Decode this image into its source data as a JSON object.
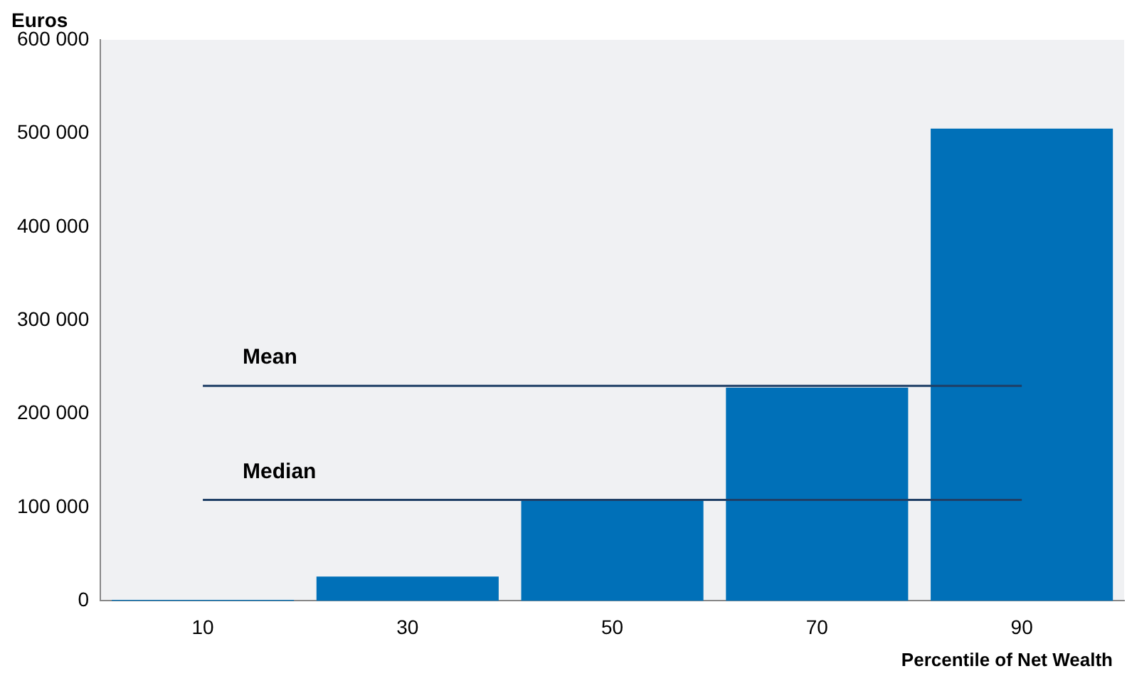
{
  "chart_data": {
    "type": "bar",
    "xlabel": "Percentile of Net Wealth",
    "ylabel": "Euros",
    "categories": [
      "10",
      "30",
      "50",
      "70",
      "90"
    ],
    "values": [
      1000,
      26000,
      108000,
      228000,
      505000
    ],
    "color": "#0070b8",
    "ylim": [
      0,
      600000
    ],
    "yticks": [
      {
        "value": 0,
        "label": "0"
      },
      {
        "value": 100000,
        "label": "100 000"
      },
      {
        "value": 200000,
        "label": "200 000"
      },
      {
        "value": 300000,
        "label": "300 000"
      },
      {
        "value": 400000,
        "label": "400 000"
      },
      {
        "value": 500000,
        "label": "500 000"
      },
      {
        "value": 600000,
        "label": "600 000"
      }
    ],
    "grid": false,
    "legend": false,
    "ref_lines": [
      {
        "axis": "y",
        "value": 230000,
        "label": "Mean",
        "color": "#1f3f66"
      },
      {
        "axis": "y",
        "value": 108000,
        "label": "Median",
        "color": "#1f3f66"
      }
    ]
  }
}
